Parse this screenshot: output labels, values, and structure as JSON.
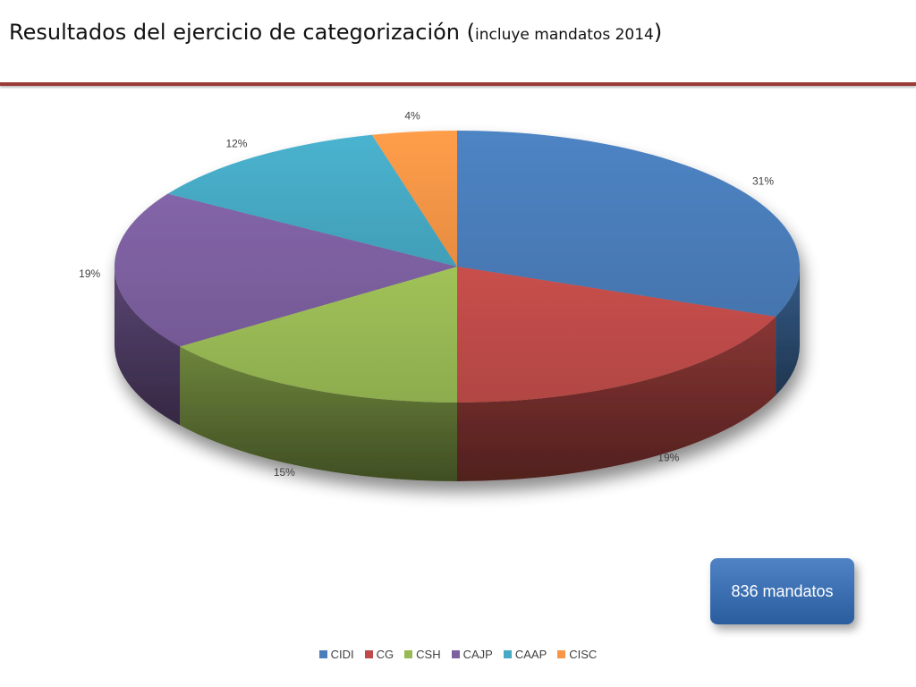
{
  "title": {
    "main": "Resultados del ejercicio de categorización",
    "open_paren": "(",
    "sub": "incluye mandatos 2014",
    "close_paren": ")"
  },
  "badge": {
    "label": "836 mandatos"
  },
  "chart_data": {
    "type": "pie",
    "style": "3d",
    "legend_placement": "bottom",
    "categories": [
      "CIDI",
      "CG",
      "CSH",
      "CAJP",
      "CAAP",
      "CISC"
    ],
    "values": [
      31,
      19,
      15,
      19,
      12,
      4
    ],
    "labels": [
      "31%",
      "19%",
      "15%",
      "19%",
      "12%",
      "4%"
    ],
    "colors": [
      "#4a7ebb",
      "#be4b48",
      "#98b954",
      "#7d60a0",
      "#46aac5",
      "#f79646"
    ]
  }
}
